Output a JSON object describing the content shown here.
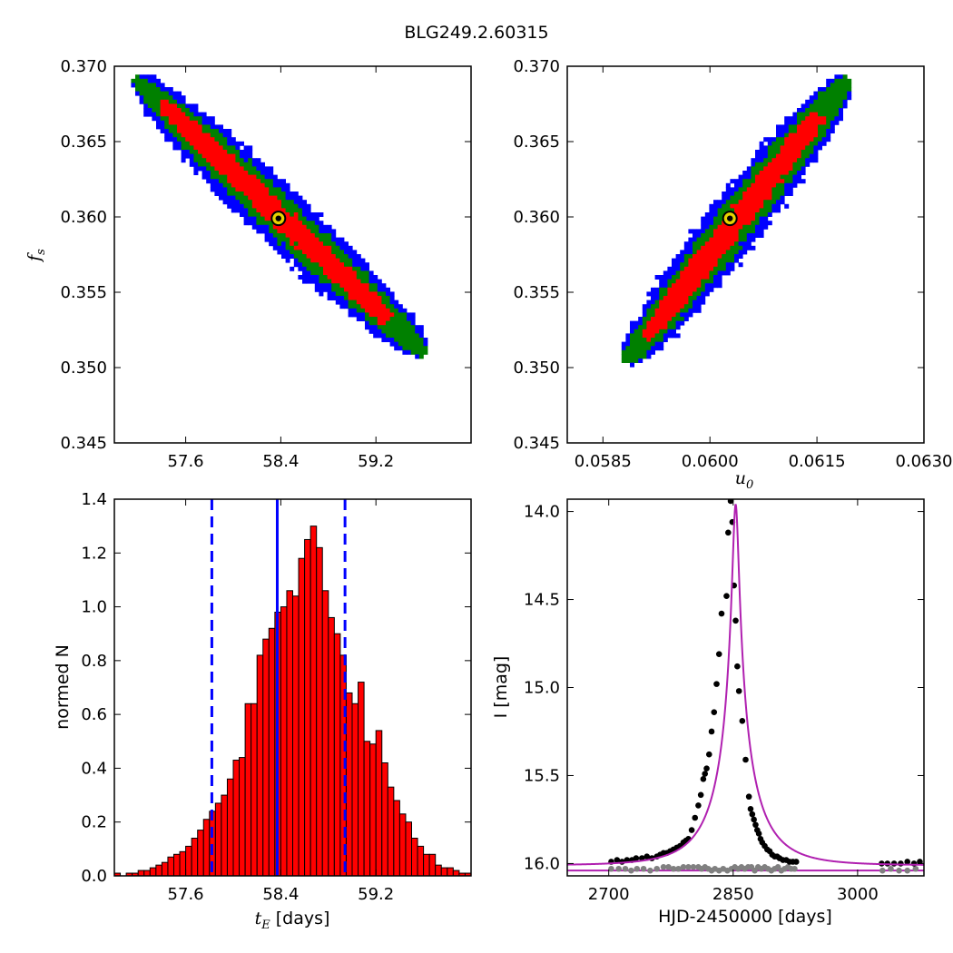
{
  "figure": {
    "title": "BLG249.2.60315"
  },
  "colors": {
    "blue": "#0000ff",
    "green": "#008000",
    "red": "#ff0000",
    "magenta": "#b020b0",
    "gray": "#808080",
    "marker": "#e6d200"
  },
  "chart_data": [
    {
      "id": "tE_fs",
      "type": "heatmap",
      "xlabel": "",
      "ylabel_main": "f",
      "ylabel_sub": "s",
      "xlim": [
        57.0,
        60.0
      ],
      "ylim": [
        0.345,
        0.37
      ],
      "xticks": [
        "57.6",
        "58.4",
        "59.2"
      ],
      "xtick_values": [
        57.6,
        58.4,
        59.2
      ],
      "yticks": [
        "0.345",
        "0.350",
        "0.355",
        "0.360",
        "0.365",
        "0.370"
      ],
      "ytick_values": [
        0.345,
        0.35,
        0.355,
        0.36,
        0.365,
        0.37
      ],
      "contours": {
        "center": [
          58.38,
          0.3598
        ],
        "endpoint_low_x": [
          57.2,
          0.369
        ],
        "endpoint_high_x": [
          59.6,
          0.351
        ],
        "sigma_levels": [
          "blue",
          "green",
          "red"
        ]
      },
      "best_fit": [
        58.38,
        0.3599
      ]
    },
    {
      "id": "u0_fs",
      "type": "heatmap",
      "xlabel_main": "u",
      "xlabel_sub": "0",
      "xlim": [
        0.058,
        0.063
      ],
      "ylim": [
        0.345,
        0.37
      ],
      "xticks": [
        "0.0585",
        "0.0600",
        "0.0615",
        "0.0630"
      ],
      "xtick_values": [
        0.0585,
        0.06,
        0.0615,
        0.063
      ],
      "yticks": [
        "0.345",
        "0.350",
        "0.355",
        "0.360",
        "0.365",
        "0.370"
      ],
      "ytick_values": [
        0.345,
        0.35,
        0.355,
        0.36,
        0.365,
        0.37
      ],
      "contours": {
        "endpoint_low_x": [
          0.05885,
          0.3505
        ],
        "endpoint_high_x": [
          0.0619,
          0.369
        ],
        "sigma_levels": [
          "blue",
          "green",
          "red"
        ]
      },
      "best_fit": [
        0.06028,
        0.3599
      ]
    },
    {
      "id": "tE_hist",
      "type": "bar",
      "xlabel_main": "t",
      "xlabel_sub": "E",
      "xlabel_rest": " [days]",
      "ylabel": "normed N",
      "xlim": [
        57.0,
        60.0
      ],
      "ylim": [
        0.0,
        1.4
      ],
      "xticks": [
        "57.6",
        "58.4",
        "59.2"
      ],
      "xtick_values": [
        57.6,
        58.4,
        59.2
      ],
      "yticks": [
        "0.0",
        "0.2",
        "0.4",
        "0.6",
        "0.8",
        "1.0",
        "1.2",
        "1.4"
      ],
      "ytick_values": [
        0.0,
        0.2,
        0.4,
        0.6,
        0.8,
        1.0,
        1.2,
        1.4
      ],
      "bin_start": 57.0,
      "bin_width": 0.05,
      "values": [
        0.01,
        0.0,
        0.01,
        0.01,
        0.02,
        0.02,
        0.03,
        0.04,
        0.05,
        0.07,
        0.08,
        0.09,
        0.11,
        0.14,
        0.17,
        0.21,
        0.24,
        0.27,
        0.3,
        0.36,
        0.43,
        0.44,
        0.64,
        0.64,
        0.82,
        0.88,
        0.92,
        0.98,
        1.0,
        1.06,
        1.04,
        1.18,
        1.25,
        1.3,
        1.22,
        1.06,
        0.96,
        0.9,
        0.82,
        0.68,
        0.64,
        0.72,
        0.5,
        0.49,
        0.54,
        0.42,
        0.33,
        0.28,
        0.23,
        0.2,
        0.14,
        0.11,
        0.08,
        0.08,
        0.04,
        0.03,
        0.03,
        0.02,
        0.01,
        0.01
      ],
      "vlines": [
        {
          "x": 58.37,
          "style": "solid",
          "color": "blue"
        },
        {
          "x": 57.82,
          "style": "dashed",
          "color": "blue"
        },
        {
          "x": 58.94,
          "style": "dashed",
          "color": "blue"
        }
      ]
    },
    {
      "id": "lightcurve",
      "type": "scatter",
      "xlabel": "HJD-2450000 [days]",
      "ylabel": "I [mag]",
      "xlim": [
        2650,
        3080
      ],
      "ylim": [
        16.07,
        13.93
      ],
      "xticks": [
        "2700",
        "2850",
        "3000"
      ],
      "xtick_values": [
        2700,
        2850,
        3000
      ],
      "yticks": [
        "14.0",
        "14.5",
        "15.0",
        "15.5",
        "16.0"
      ],
      "ytick_values": [
        14.0,
        14.5,
        15.0,
        15.5,
        16.0
      ],
      "model": {
        "t0": 2853.0,
        "tE": 58.4,
        "u0": 0.0603,
        "fs": 0.36,
        "I_base": 16.01,
        "color": "magenta"
      },
      "residual_model_level": 16.04,
      "observed": [
        [
          2703,
          15.99
        ],
        [
          2710,
          15.98
        ],
        [
          2716,
          15.99
        ],
        [
          2722,
          15.98
        ],
        [
          2728,
          15.98
        ],
        [
          2733,
          15.97
        ],
        [
          2740,
          15.97
        ],
        [
          2746,
          15.96
        ],
        [
          2752,
          15.97
        ],
        [
          2758,
          15.96
        ],
        [
          2762,
          15.95
        ],
        [
          2766,
          15.94
        ],
        [
          2770,
          15.94
        ],
        [
          2774,
          15.93
        ],
        [
          2778,
          15.92
        ],
        [
          2782,
          15.91
        ],
        [
          2786,
          15.9
        ],
        [
          2790,
          15.88
        ],
        [
          2793,
          15.87
        ],
        [
          2796,
          15.86
        ],
        [
          2800,
          15.81
        ],
        [
          2804,
          15.74
        ],
        [
          2808,
          15.67
        ],
        [
          2811,
          15.61
        ],
        [
          2814,
          15.52
        ],
        [
          2816,
          15.49
        ],
        [
          2818,
          15.46
        ],
        [
          2821,
          15.38
        ],
        [
          2824,
          15.25
        ],
        [
          2827,
          15.14
        ],
        [
          2830,
          14.98
        ],
        [
          2833,
          14.81
        ],
        [
          2836,
          14.58
        ],
        [
          2842,
          14.48
        ],
        [
          2844,
          14.12
        ],
        [
          2847,
          13.94
        ],
        [
          2849,
          14.06
        ],
        [
          2851,
          14.42
        ],
        [
          2853,
          14.62
        ],
        [
          2855,
          14.88
        ],
        [
          2857,
          15.02
        ],
        [
          2861,
          15.19
        ],
        [
          2865,
          15.41
        ],
        [
          2869,
          15.62
        ],
        [
          2871,
          15.69
        ],
        [
          2873,
          15.72
        ],
        [
          2875,
          15.75
        ],
        [
          2877,
          15.78
        ],
        [
          2879,
          15.81
        ],
        [
          2881,
          15.83
        ],
        [
          2883,
          15.86
        ],
        [
          2885,
          15.88
        ],
        [
          2888,
          15.9
        ],
        [
          2891,
          15.92
        ],
        [
          2894,
          15.93
        ],
        [
          2897,
          15.95
        ],
        [
          2900,
          15.96
        ],
        [
          2903,
          15.96
        ],
        [
          2906,
          15.97
        ],
        [
          2910,
          15.98
        ],
        [
          2914,
          15.98
        ],
        [
          2918,
          15.99
        ],
        [
          2922,
          15.99
        ],
        [
          2926,
          15.99
        ],
        [
          3029,
          16.0
        ],
        [
          3036,
          16.0
        ],
        [
          3044,
          16.0
        ],
        [
          3052,
          16.0
        ],
        [
          3060,
          15.99
        ],
        [
          3068,
          16.0
        ],
        [
          3075,
          15.99
        ]
      ],
      "residuals": [
        [
          2703,
          16.03
        ],
        [
          2712,
          16.03
        ],
        [
          2720,
          16.03
        ],
        [
          2727,
          16.04
        ],
        [
          2734,
          16.03
        ],
        [
          2742,
          16.03
        ],
        [
          2750,
          16.04
        ],
        [
          2758,
          16.03
        ],
        [
          2766,
          16.02
        ],
        [
          2772,
          16.02
        ],
        [
          2778,
          16.03
        ],
        [
          2784,
          16.03
        ],
        [
          2790,
          16.02
        ],
        [
          2796,
          16.02
        ],
        [
          2802,
          16.02
        ],
        [
          2808,
          16.02
        ],
        [
          2812,
          16.03
        ],
        [
          2816,
          16.02
        ],
        [
          2820,
          16.03
        ],
        [
          2824,
          16.04
        ],
        [
          2828,
          16.03
        ],
        [
          2833,
          16.04
        ],
        [
          2838,
          16.03
        ],
        [
          2843,
          16.04
        ],
        [
          2848,
          16.03
        ],
        [
          2852,
          16.02
        ],
        [
          2856,
          16.03
        ],
        [
          2860,
          16.02
        ],
        [
          2864,
          16.03
        ],
        [
          2868,
          16.02
        ],
        [
          2872,
          16.02
        ],
        [
          2876,
          16.04
        ],
        [
          2880,
          16.02
        ],
        [
          2884,
          16.03
        ],
        [
          2888,
          16.02
        ],
        [
          2892,
          16.03
        ],
        [
          2896,
          16.04
        ],
        [
          2900,
          16.03
        ],
        [
          2904,
          16.02
        ],
        [
          2908,
          16.04
        ],
        [
          2912,
          16.03
        ],
        [
          2916,
          16.02
        ],
        [
          2920,
          16.03
        ],
        [
          2924,
          16.03
        ],
        [
          3030,
          16.04
        ],
        [
          3040,
          16.03
        ],
        [
          3050,
          16.04
        ],
        [
          3060,
          16.04
        ],
        [
          3070,
          16.03
        ]
      ]
    }
  ]
}
